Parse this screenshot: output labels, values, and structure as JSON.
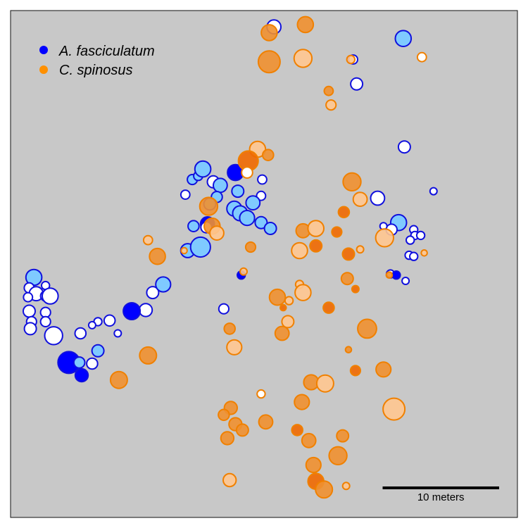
{
  "chart_data": {
    "type": "scatter",
    "title": "",
    "xlabel": "",
    "ylabel": "",
    "xlim": [
      0,
      43.5
    ],
    "ylim": [
      0,
      43.5
    ],
    "grid": false,
    "legend_placement": "top-left",
    "background_color": "#c8c8c8",
    "series": [
      {
        "name": "A. fasciculatum",
        "marker_color": "#0000ff",
        "edge_color": "#1010dd",
        "points": [
          [
            22.6,
            42.1,
            0.6,
            "white"
          ],
          [
            33.7,
            41.1,
            0.7,
            "light"
          ],
          [
            29.4,
            39.3,
            0.35,
            "white"
          ],
          [
            29.7,
            37.2,
            0.5,
            "white"
          ],
          [
            33.8,
            31.8,
            0.5,
            "white"
          ],
          [
            15.6,
            29.0,
            0.4,
            "light"
          ],
          [
            16.1,
            29.3,
            0.35,
            "light"
          ],
          [
            16.5,
            29.9,
            0.7,
            "light"
          ],
          [
            17.4,
            28.8,
            0.5,
            "white"
          ],
          [
            18.0,
            28.5,
            0.6,
            "light"
          ],
          [
            19.3,
            29.6,
            0.7,
            "full"
          ],
          [
            19.5,
            28.0,
            0.5,
            "light"
          ],
          [
            21.6,
            29.0,
            0.35,
            "white"
          ],
          [
            21.5,
            27.6,
            0.35,
            "white"
          ],
          [
            17.7,
            27.5,
            0.45,
            "light"
          ],
          [
            15.0,
            27.7,
            0.35,
            "white"
          ],
          [
            17.1,
            26.9,
            0.5,
            "light"
          ],
          [
            19.2,
            26.5,
            0.65,
            "light"
          ],
          [
            19.7,
            26.1,
            0.65,
            "light"
          ],
          [
            20.8,
            27.0,
            0.6,
            "light"
          ],
          [
            20.3,
            25.7,
            0.65,
            "light"
          ],
          [
            21.5,
            25.3,
            0.5,
            "light"
          ],
          [
            22.3,
            24.8,
            0.5,
            "light"
          ],
          [
            16.9,
            25.2,
            0.6,
            "full"
          ],
          [
            16.8,
            24.9,
            0.45,
            "white"
          ],
          [
            15.7,
            25.0,
            0.45,
            "light"
          ],
          [
            15.2,
            22.9,
            0.6,
            "light"
          ],
          [
            16.3,
            23.2,
            0.9,
            "light"
          ],
          [
            19.8,
            20.8,
            0.3,
            "full"
          ],
          [
            31.5,
            27.4,
            0.6,
            "white"
          ],
          [
            33.3,
            25.3,
            0.7,
            "light"
          ],
          [
            32.7,
            24.7,
            0.45,
            "white"
          ],
          [
            34.6,
            24.7,
            0.3,
            "white"
          ],
          [
            34.7,
            24.2,
            0.3,
            "white"
          ],
          [
            35.2,
            24.2,
            0.3,
            "white"
          ],
          [
            34.3,
            23.8,
            0.3,
            "white"
          ],
          [
            34.2,
            22.5,
            0.3,
            "white"
          ],
          [
            34.6,
            22.4,
            0.3,
            "white"
          ],
          [
            36.3,
            28.0,
            0.25,
            "white"
          ],
          [
            32.0,
            25.0,
            0.25,
            "white"
          ],
          [
            32.6,
            20.9,
            0.3,
            "white"
          ],
          [
            33.1,
            20.8,
            0.3,
            "full"
          ],
          [
            33.9,
            20.3,
            0.25,
            "white"
          ],
          [
            2.0,
            20.6,
            0.7,
            "light"
          ],
          [
            1.6,
            19.7,
            0.4,
            "white"
          ],
          [
            2.2,
            19.2,
            0.6,
            "white"
          ],
          [
            3.0,
            19.9,
            0.3,
            "white"
          ],
          [
            3.0,
            19.0,
            0.4,
            "white"
          ],
          [
            3.4,
            19.0,
            0.7,
            "white"
          ],
          [
            1.5,
            18.9,
            0.35,
            "white"
          ],
          [
            1.6,
            17.7,
            0.5,
            "white"
          ],
          [
            3.0,
            17.6,
            0.4,
            "white"
          ],
          [
            1.8,
            16.8,
            0.4,
            "white"
          ],
          [
            3.0,
            16.8,
            0.4,
            "white"
          ],
          [
            1.7,
            16.2,
            0.5,
            "white"
          ],
          [
            3.7,
            15.6,
            0.8,
            "white"
          ],
          [
            6.0,
            15.8,
            0.45,
            "white"
          ],
          [
            12.2,
            19.3,
            0.5,
            "white"
          ],
          [
            13.1,
            20.0,
            0.65,
            "light"
          ],
          [
            11.6,
            17.8,
            0.55,
            "white"
          ],
          [
            10.4,
            17.7,
            0.75,
            "full"
          ],
          [
            8.5,
            16.9,
            0.45,
            "white"
          ],
          [
            7.5,
            16.8,
            0.3,
            "white"
          ],
          [
            7.0,
            16.5,
            0.25,
            "white"
          ],
          [
            9.2,
            15.8,
            0.25,
            "white"
          ],
          [
            18.3,
            17.9,
            0.4,
            "white"
          ],
          [
            7.5,
            14.3,
            0.5,
            "light"
          ],
          [
            5.0,
            13.3,
            1.0,
            "full"
          ],
          [
            5.9,
            13.3,
            0.45,
            "light"
          ],
          [
            7.0,
            13.2,
            0.45,
            "white"
          ],
          [
            6.1,
            12.2,
            0.55,
            "full"
          ]
        ]
      },
      {
        "name": "C. spinosus",
        "marker_color": "#ff9000",
        "edge_color": "#f08000",
        "points": [
          [
            25.3,
            42.3,
            0.7,
            "medium"
          ],
          [
            22.2,
            41.6,
            0.7,
            "medium"
          ],
          [
            22.2,
            39.1,
            1.0,
            "medium"
          ],
          [
            25.1,
            39.4,
            0.8,
            "light"
          ],
          [
            29.2,
            39.3,
            0.3,
            "light"
          ],
          [
            35.3,
            39.5,
            0.35,
            "white"
          ],
          [
            27.3,
            36.6,
            0.35,
            "medium"
          ],
          [
            27.5,
            35.4,
            0.4,
            "light"
          ],
          [
            21.2,
            31.6,
            0.7,
            "light"
          ],
          [
            22.1,
            31.1,
            0.45,
            "medium"
          ],
          [
            20.4,
            30.6,
            0.9,
            "dark"
          ],
          [
            20.3,
            29.6,
            0.45,
            "white"
          ],
          [
            29.3,
            28.8,
            0.8,
            "medium"
          ],
          [
            30.0,
            27.3,
            0.6,
            "light"
          ],
          [
            28.6,
            26.2,
            0.45,
            "dark"
          ],
          [
            17.0,
            26.7,
            0.8,
            "medium"
          ],
          [
            17.3,
            25.0,
            0.7,
            "medium"
          ],
          [
            17.7,
            24.4,
            0.6,
            "light"
          ],
          [
            20.6,
            23.2,
            0.4,
            "medium"
          ],
          [
            11.8,
            23.8,
            0.35,
            "light"
          ],
          [
            12.6,
            22.4,
            0.7,
            "medium"
          ],
          [
            14.9,
            22.9,
            0.2,
            "light"
          ],
          [
            20.0,
            21.1,
            0.25,
            "light"
          ],
          [
            25.1,
            24.6,
            0.6,
            "medium"
          ],
          [
            26.2,
            24.8,
            0.7,
            "light"
          ],
          [
            28.0,
            24.5,
            0.4,
            "dark"
          ],
          [
            32.1,
            24.0,
            0.8,
            "light"
          ],
          [
            26.2,
            23.3,
            0.5,
            "dark"
          ],
          [
            24.8,
            22.9,
            0.7,
            "light"
          ],
          [
            29.0,
            22.6,
            0.5,
            "dark"
          ],
          [
            30.0,
            23.0,
            0.25,
            "light"
          ],
          [
            35.5,
            22.7,
            0.2,
            "light"
          ],
          [
            32.5,
            20.8,
            0.2,
            "medium"
          ],
          [
            28.9,
            20.5,
            0.5,
            "medium"
          ],
          [
            24.8,
            20.0,
            0.3,
            "light"
          ],
          [
            25.1,
            19.3,
            0.7,
            "light"
          ],
          [
            29.6,
            19.6,
            0.25,
            "dark"
          ],
          [
            22.9,
            18.9,
            0.7,
            "medium"
          ],
          [
            23.9,
            18.6,
            0.3,
            "light"
          ],
          [
            23.4,
            18.0,
            0.2,
            "dark"
          ],
          [
            27.3,
            18.0,
            0.45,
            "dark"
          ],
          [
            23.8,
            16.8,
            0.5,
            "light"
          ],
          [
            18.8,
            16.2,
            0.45,
            "medium"
          ],
          [
            23.3,
            15.8,
            0.6,
            "medium"
          ],
          [
            30.6,
            16.2,
            0.85,
            "medium"
          ],
          [
            19.2,
            14.6,
            0.65,
            "light"
          ],
          [
            29.0,
            14.4,
            0.2,
            "medium"
          ],
          [
            29.6,
            12.6,
            0.4,
            "dark"
          ],
          [
            32.0,
            12.7,
            0.65,
            "medium"
          ],
          [
            11.8,
            13.9,
            0.75,
            "medium"
          ],
          [
            9.3,
            11.8,
            0.75,
            "medium"
          ],
          [
            21.5,
            10.6,
            0.3,
            "white"
          ],
          [
            25.8,
            11.6,
            0.65,
            "medium"
          ],
          [
            27.0,
            11.5,
            0.75,
            "light"
          ],
          [
            25.0,
            9.9,
            0.65,
            "medium"
          ],
          [
            32.9,
            9.3,
            1.0,
            "light"
          ],
          [
            18.9,
            9.4,
            0.55,
            "medium"
          ],
          [
            18.3,
            8.8,
            0.45,
            "medium"
          ],
          [
            21.9,
            8.2,
            0.6,
            "medium"
          ],
          [
            19.3,
            8.0,
            0.55,
            "medium"
          ],
          [
            19.9,
            7.5,
            0.5,
            "medium"
          ],
          [
            24.6,
            7.5,
            0.45,
            "dark"
          ],
          [
            18.6,
            6.8,
            0.55,
            "medium"
          ],
          [
            25.6,
            6.6,
            0.6,
            "medium"
          ],
          [
            28.5,
            7.0,
            0.5,
            "medium"
          ],
          [
            28.1,
            5.3,
            0.8,
            "medium"
          ],
          [
            26.0,
            4.5,
            0.65,
            "medium"
          ],
          [
            18.8,
            3.2,
            0.55,
            "light"
          ],
          [
            26.2,
            3.1,
            0.7,
            "dark"
          ],
          [
            26.9,
            2.4,
            0.75,
            "medium"
          ],
          [
            28.8,
            2.7,
            0.25,
            "light"
          ]
        ]
      }
    ],
    "point_fields": [
      "x_m",
      "y_m",
      "relative_size",
      "shade"
    ],
    "shade_colors": {
      "white": "#ffffff",
      "light_blue": "#7fcaff",
      "full_blue": "#0000ff",
      "light_orange": "#ffc690",
      "medium_orange": "#f09030",
      "dark_orange": "#f06800"
    },
    "legend": [
      {
        "label": "A. fasciculatum",
        "color": "#0000ff"
      },
      {
        "label": "C. spinosus",
        "color": "#ff9000"
      }
    ],
    "scale_bar": {
      "label": "10 meters",
      "length_m": 10
    }
  }
}
